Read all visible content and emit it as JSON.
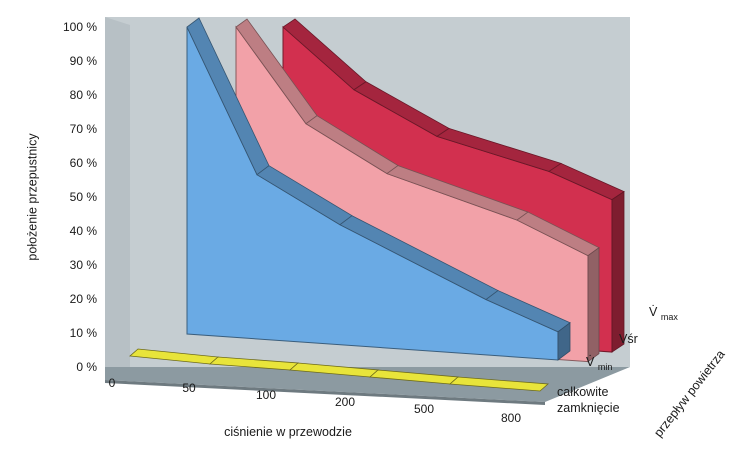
{
  "chart_data": {
    "type": "area",
    "title": "",
    "ylabel": "położenie przepustnicy",
    "xlabel": "ciśnienie w przewodzie",
    "zlabel": "przepływ powietrza",
    "ylim": [
      0,
      100
    ],
    "y_ticks": [
      "0 %",
      "10 %",
      "20 %",
      "30 %",
      "40 %",
      "50 %",
      "60 %",
      "70 %",
      "80 %",
      "90 %",
      "100 %"
    ],
    "x_ticks": [
      "0",
      "50",
      "100",
      "200",
      "500",
      "800"
    ],
    "depth_categories": [
      {
        "id": "closed",
        "lines": [
          "całkowite",
          "zamknięcie"
        ]
      },
      {
        "id": "vmin",
        "base": "V̇",
        "sub": "min"
      },
      {
        "id": "vsr",
        "base": "Vśr",
        "sub": ""
      },
      {
        "id": "vmax",
        "base": "V̇",
        "sub": "max"
      }
    ],
    "series": [
      {
        "name": "V̇min",
        "x": [
          "50",
          "100",
          "200",
          "500",
          "800"
        ],
        "values": [
          100,
          58,
          45,
          26,
          18
        ],
        "color": "#6aaae4"
      },
      {
        "name": "Vśr",
        "x": [
          "50",
          "100",
          "200",
          "500",
          "800"
        ],
        "values": [
          100,
          73,
          60,
          49,
          40
        ],
        "color": "#f2a1a8"
      },
      {
        "name": "V̇max",
        "x": [
          "50",
          "100",
          "200",
          "500",
          "800"
        ],
        "values": [
          100,
          83,
          71,
          63,
          56
        ],
        "color": "#d2304f"
      }
    ],
    "closed_floor_color": "#e8e43a",
    "grid": false
  }
}
